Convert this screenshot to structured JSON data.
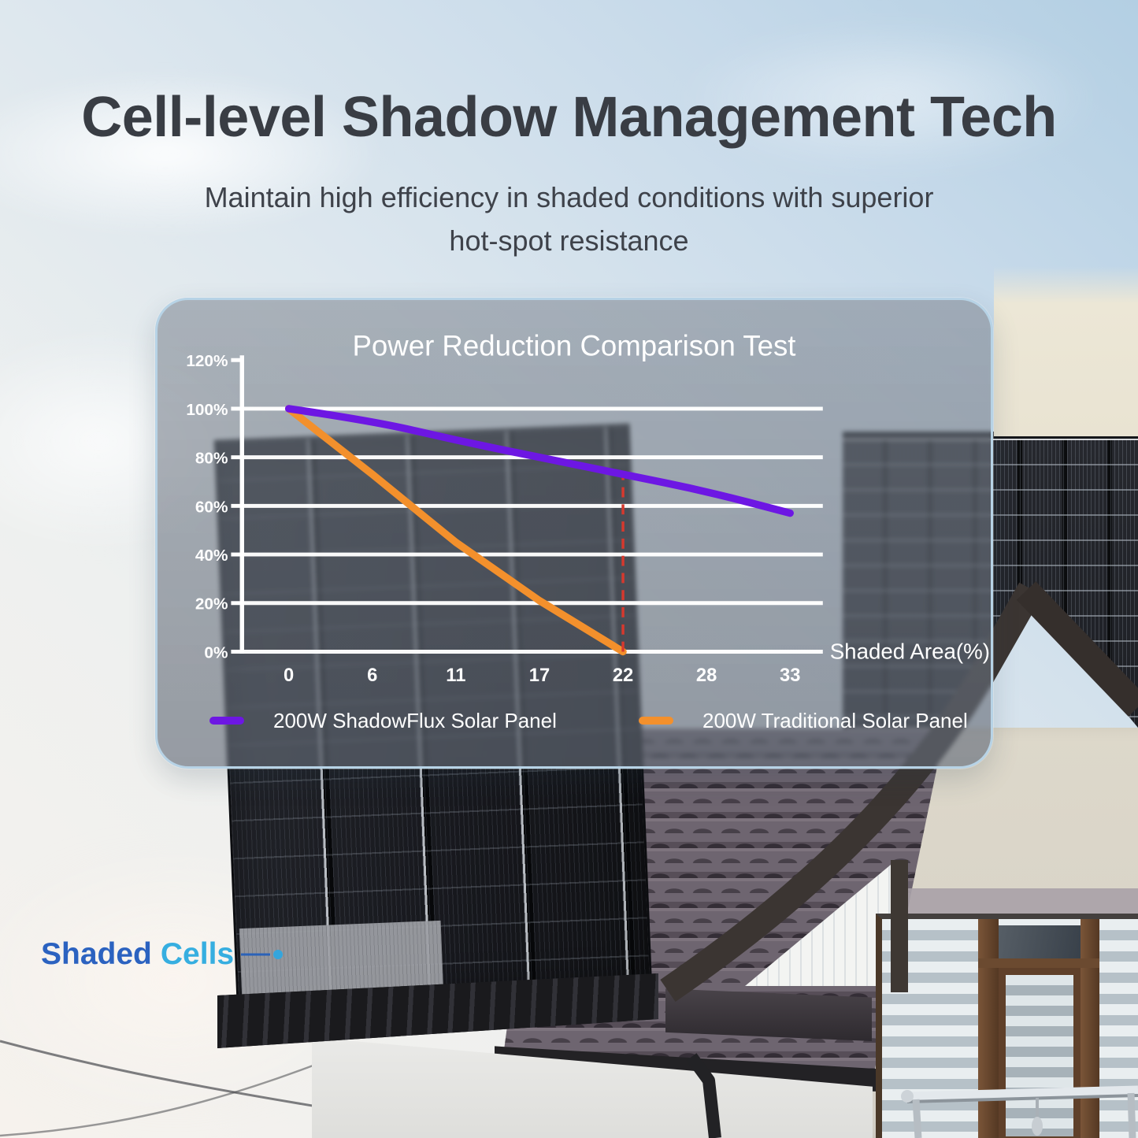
{
  "header": {
    "title": "Cell-level Shadow Management Tech",
    "subtitle_line1": "Maintain high efficiency in shaded conditions with superior",
    "subtitle_line2": "hot-spot resistance"
  },
  "chart_data": {
    "type": "line",
    "title": "Power Reduction Comparison Test",
    "xlabel": "Shaded Area(%)",
    "ylabel": "",
    "x_ticks": [
      0,
      6,
      11,
      17,
      22,
      28,
      33
    ],
    "y_ticks": [
      120,
      100,
      80,
      60,
      40,
      20,
      0
    ],
    "y_tick_suffix": "%",
    "ylim": [
      0,
      120
    ],
    "grid": true,
    "legend_position": "bottom",
    "series": [
      {
        "name": "200W ShadowFlux Solar Panel",
        "color": "#6d17e3",
        "x": [
          0,
          6,
          11,
          17,
          22,
          28,
          33
        ],
        "values": [
          100,
          95,
          87,
          80,
          73,
          66,
          57
        ]
      },
      {
        "name": "200W Traditional Solar Panel",
        "color": "#f3902c",
        "x": [
          0,
          6,
          11,
          17,
          22
        ],
        "values": [
          100,
          73,
          45,
          21,
          0
        ]
      }
    ],
    "annotations": [
      {
        "type": "vline",
        "style": "dashed",
        "x": 22,
        "y_from": 0,
        "y_to": 72,
        "color": "#d6392e"
      }
    ]
  },
  "callout": {
    "word1": "Shaded",
    "word2": "Cells"
  },
  "colors": {
    "heading": "#3a3e45",
    "panel_border": "#b7d3e6",
    "axis_text": "#ffffff",
    "series_purple": "#6d17e3",
    "series_orange": "#f3902c",
    "annotation_red": "#d6392e",
    "callout_blue": "#2b62c0",
    "callout_cyan": "#36aee0"
  }
}
